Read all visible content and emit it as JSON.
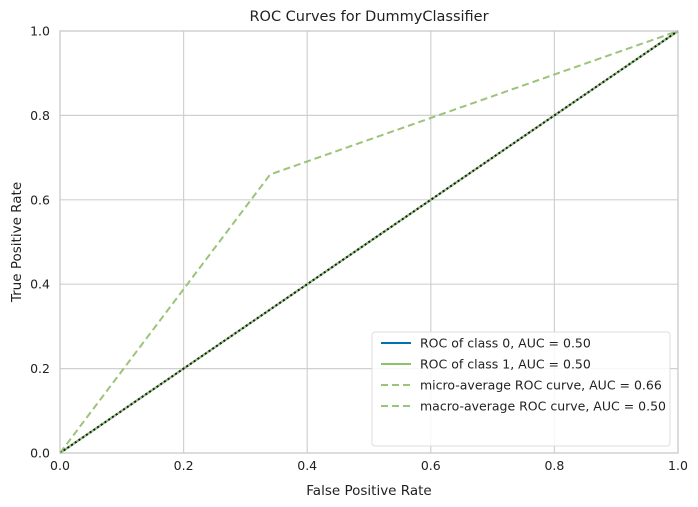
{
  "chart_data": {
    "type": "line",
    "title": "ROC Curves for DummyClassifier",
    "xlabel": "False Positive Rate",
    "ylabel": "True Positive Rate",
    "xlim": [
      0,
      1
    ],
    "ylim": [
      0,
      1
    ],
    "xticks": [
      0,
      0.2,
      0.4,
      0.6,
      0.8,
      1.0
    ],
    "yticks": [
      0,
      0.2,
      0.4,
      0.6,
      0.8,
      1.0
    ],
    "xtick_labels": [
      "0.0",
      "0.2",
      "0.4",
      "0.6",
      "0.8",
      "1.0"
    ],
    "ytick_labels": [
      "0.0",
      "0.2",
      "0.4",
      "0.6",
      "0.8",
      "1.0"
    ],
    "grid": true,
    "legend_position": "bottom-right",
    "series": [
      {
        "name": "ROC of class 0, AUC = 0.50",
        "x": [
          0,
          1
        ],
        "y": [
          0,
          1
        ],
        "color": "#0072b2",
        "style": "solid"
      },
      {
        "name": "ROC of class 1, AUC = 0.50",
        "x": [
          0,
          1
        ],
        "y": [
          0,
          1
        ],
        "color": "#8cc36a",
        "style": "solid"
      },
      {
        "name": "micro-average ROC curve, AUC = 0.66",
        "x": [
          0,
          0.34,
          1
        ],
        "y": [
          0,
          0.66,
          1
        ],
        "color": "#9bc47a",
        "style": "dashed"
      },
      {
        "name": "macro-average ROC curve, AUC = 0.50",
        "x": [
          0,
          1
        ],
        "y": [
          0,
          1
        ],
        "color": "#9bc47a",
        "style": "dashed"
      }
    ],
    "reference_line": {
      "x": [
        0,
        1
      ],
      "y": [
        0,
        1
      ],
      "color": "#1a1a1a",
      "style": "dotted"
    }
  }
}
